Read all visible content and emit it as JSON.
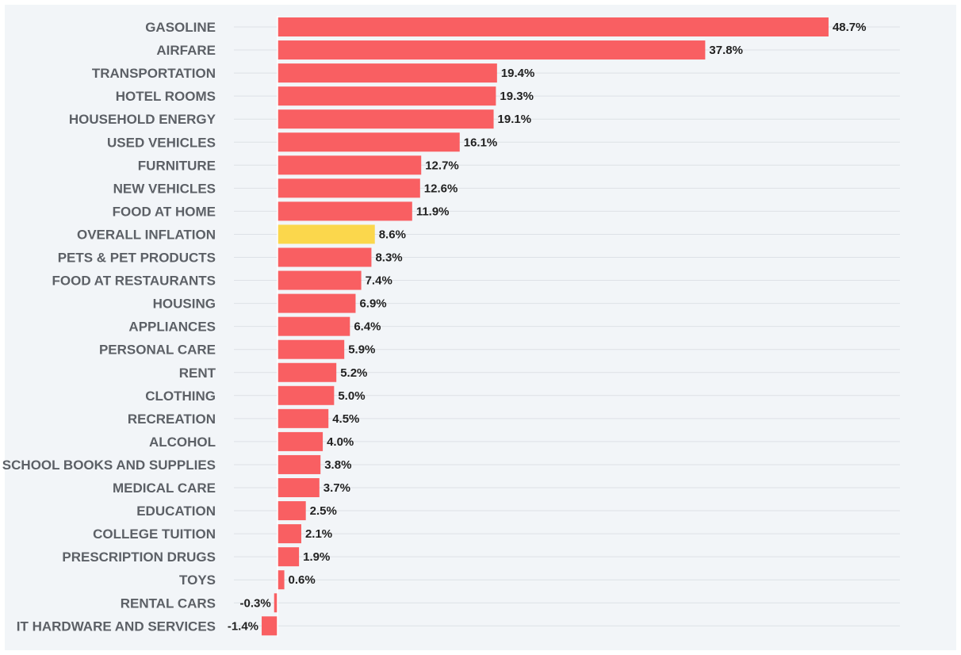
{
  "chart_data": {
    "type": "bar",
    "orientation": "horizontal",
    "title": "",
    "xlabel": "",
    "ylabel": "",
    "categories": [
      "GASOLINE",
      "AIRFARE",
      "TRANSPORTATION",
      "HOTEL ROOMS",
      "HOUSEHOLD ENERGY",
      "USED VEHICLES",
      "FURNITURE",
      "NEW VEHICLES",
      "FOOD AT HOME",
      "OVERALL INFLATION",
      "PETS & PET PRODUCTS",
      "FOOD AT RESTAURANTS",
      "HOUSING",
      "APPLIANCES",
      "PERSONAL CARE",
      "RENT",
      "CLOTHING",
      "RECREATION",
      "ALCOHOL",
      "SCHOOL BOOKS AND SUPPLIES",
      "MEDICAL CARE",
      "EDUCATION",
      "COLLEGE TUITION",
      "PRESCRIPTION DRUGS",
      "TOYS",
      "RENTAL CARS",
      "IT HARDWARE AND SERVICES"
    ],
    "values": [
      48.7,
      37.8,
      19.4,
      19.3,
      19.1,
      16.1,
      12.7,
      12.6,
      11.9,
      8.6,
      8.3,
      7.4,
      6.9,
      6.4,
      5.9,
      5.2,
      5.0,
      4.5,
      4.0,
      3.8,
      3.7,
      2.5,
      2.1,
      1.9,
      0.6,
      -0.3,
      -1.4
    ],
    "value_labels": [
      "48.7%",
      "37.8%",
      "19.4%",
      "19.3%",
      "19.1%",
      "16.1%",
      "12.7%",
      "12.6%",
      "11.9%",
      "8.6%",
      "8.3%",
      "7.4%",
      "6.9%",
      "6.4%",
      "5.9%",
      "5.2%",
      "5.0%",
      "4.5%",
      "4.0%",
      "3.8%",
      "3.7%",
      "2.5%",
      "2.1%",
      "1.9%",
      "0.6%",
      "-0.3%",
      "-1.4%"
    ],
    "highlight_category": "OVERALL INFLATION",
    "colors": {
      "bar": "#f95f62",
      "highlight": "#fbd74c",
      "background": "#f2f5f8"
    },
    "xlim": [
      -1.4,
      48.7
    ],
    "grid": true,
    "legend": "none"
  }
}
